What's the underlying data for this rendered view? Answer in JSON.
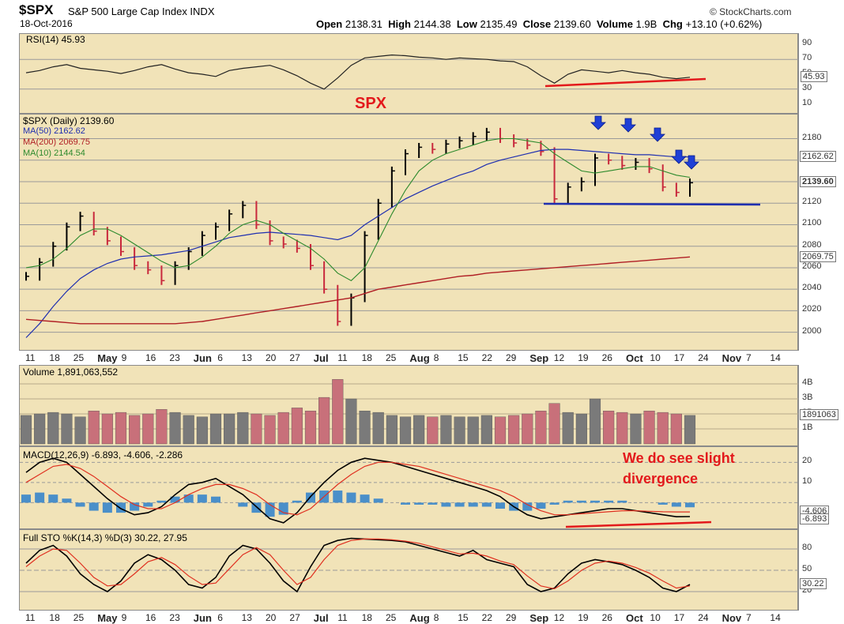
{
  "header": {
    "symbol": "$SPX",
    "name": "S&P 500 Large Cap Index INDX",
    "date": "18-Oct-2016",
    "brand": "© StockCharts.com",
    "open_label": "Open",
    "open": "2138.31",
    "high_label": "High",
    "high": "2144.38",
    "low_label": "Low",
    "low": "2135.49",
    "close_label": "Close",
    "close": "2139.60",
    "volume_label": "Volume",
    "volume": "1.9B",
    "chg_label": "Chg",
    "chg": "+13.10 (+0.62%)"
  },
  "colors": {
    "panel_bg": "#f1e3b8",
    "up": "#000000",
    "down": "#c8283c",
    "ma50": "#1f2fb0",
    "ma200": "#b01e24",
    "ma10": "#2d8a2d",
    "annotation": "#e3191c",
    "arrow": "#1f3fd6"
  },
  "annotations": {
    "spx_title": "SPX",
    "divergence_line1": "We do see slight",
    "divergence_line2": "divergence"
  },
  "x_axis": {
    "labels": [
      {
        "text": "11",
        "bold": false
      },
      {
        "text": "18",
        "bold": false
      },
      {
        "text": "25",
        "bold": false
      },
      {
        "text": "May",
        "bold": true
      },
      {
        "text": "9",
        "bold": false
      },
      {
        "text": "16",
        "bold": false
      },
      {
        "text": "23",
        "bold": false
      },
      {
        "text": "Jun",
        "bold": true
      },
      {
        "text": "6",
        "bold": false
      },
      {
        "text": "13",
        "bold": false
      },
      {
        "text": "20",
        "bold": false
      },
      {
        "text": "27",
        "bold": false
      },
      {
        "text": "Jul",
        "bold": true
      },
      {
        "text": "11",
        "bold": false
      },
      {
        "text": "18",
        "bold": false
      },
      {
        "text": "25",
        "bold": false
      },
      {
        "text": "Aug",
        "bold": true
      },
      {
        "text": "8",
        "bold": false
      },
      {
        "text": "15",
        "bold": false
      },
      {
        "text": "22",
        "bold": false
      },
      {
        "text": "29",
        "bold": false
      },
      {
        "text": "Sep",
        "bold": true
      },
      {
        "text": "12",
        "bold": false
      },
      {
        "text": "19",
        "bold": false
      },
      {
        "text": "26",
        "bold": false
      },
      {
        "text": "Oct",
        "bold": true
      },
      {
        "text": "10",
        "bold": false
      },
      {
        "text": "17",
        "bold": false
      },
      {
        "text": "24",
        "bold": false
      },
      {
        "text": "Nov",
        "bold": true
      },
      {
        "text": "7",
        "bold": false
      },
      {
        "text": "14",
        "bold": false
      }
    ]
  },
  "chart_data": [
    {
      "type": "line",
      "panel": "RSI",
      "title": "RSI(14) 45.93",
      "ylim": [
        0,
        100
      ],
      "y_ticks": [
        "90",
        "70",
        "50",
        "30",
        "10"
      ],
      "last_value_tag": "45.93",
      "series": [
        {
          "name": "RSI(14)",
          "values": [
            52,
            55,
            60,
            63,
            58,
            56,
            54,
            51,
            55,
            60,
            63,
            57,
            52,
            50,
            47,
            55,
            58,
            60,
            62,
            56,
            48,
            38,
            30,
            45,
            62,
            72,
            74,
            76,
            75,
            73,
            72,
            70,
            72,
            71,
            70,
            68,
            67,
            60,
            48,
            38,
            50,
            56,
            54,
            52,
            55,
            52,
            50,
            46,
            44,
            46
          ]
        }
      ]
    },
    {
      "type": "line",
      "panel": "Price",
      "title": "$SPX (Daily) 2139.60",
      "ylim": [
        1988,
        2198
      ],
      "y_ticks": [
        "2180",
        "2160",
        "2140",
        "2120",
        "2100",
        "2080",
        "2060",
        "2040",
        "2020",
        "2000"
      ],
      "price_tags": [
        "2162.62",
        "2139.60",
        "2069.75"
      ],
      "legend": [
        "MA(50) 2162.62",
        "MA(200) 2069.75",
        "MA(10) 2144.54"
      ],
      "series": [
        {
          "name": "$SPX",
          "values": [
            2052,
            2065,
            2080,
            2098,
            2108,
            2094,
            2085,
            2075,
            2062,
            2058,
            2048,
            2062,
            2075,
            2090,
            2098,
            2110,
            2118,
            2100,
            2085,
            2082,
            2078,
            2062,
            2040,
            2010,
            2032,
            2090,
            2120,
            2150,
            2166,
            2172,
            2170,
            2175,
            2178,
            2182,
            2186,
            2180,
            2176,
            2174,
            2168,
            2124,
            2135,
            2140,
            2162,
            2160,
            2155,
            2158,
            2152,
            2135,
            2130,
            2139
          ]
        },
        {
          "name": "MA(50)",
          "values": [
            1995,
            2008,
            2024,
            2038,
            2050,
            2058,
            2064,
            2068,
            2070,
            2071,
            2072,
            2074,
            2076,
            2080,
            2084,
            2088,
            2090,
            2092,
            2093,
            2092,
            2091,
            2090,
            2088,
            2086,
            2090,
            2100,
            2108,
            2116,
            2124,
            2130,
            2136,
            2141,
            2146,
            2150,
            2156,
            2160,
            2163,
            2166,
            2169,
            2170,
            2170,
            2169,
            2168,
            2167,
            2166,
            2165,
            2165,
            2164,
            2163,
            2163
          ]
        },
        {
          "name": "MA(200)",
          "values": [
            2012,
            2011,
            2010,
            2009,
            2008,
            2008,
            2008,
            2008,
            2008,
            2008,
            2008,
            2008,
            2009,
            2010,
            2012,
            2014,
            2016,
            2018,
            2020,
            2022,
            2024,
            2026,
            2028,
            2030,
            2032,
            2036,
            2040,
            2042,
            2044,
            2046,
            2048,
            2050,
            2052,
            2053,
            2055,
            2056,
            2057,
            2058,
            2059,
            2060,
            2061,
            2062,
            2063,
            2064,
            2065,
            2066,
            2067,
            2068,
            2069,
            2070
          ]
        },
        {
          "name": "MA(10)",
          "values": [
            2060,
            2062,
            2068,
            2078,
            2090,
            2096,
            2096,
            2090,
            2082,
            2074,
            2066,
            2060,
            2062,
            2070,
            2080,
            2092,
            2100,
            2104,
            2100,
            2092,
            2085,
            2078,
            2068,
            2055,
            2048,
            2060,
            2085,
            2110,
            2132,
            2150,
            2160,
            2166,
            2170,
            2174,
            2178,
            2180,
            2180,
            2178,
            2176,
            2166,
            2158,
            2150,
            2148,
            2150,
            2152,
            2154,
            2154,
            2150,
            2146,
            2144
          ]
        }
      ]
    },
    {
      "type": "bar",
      "panel": "Volume",
      "title": "Volume 1,891,063,552",
      "ylim": [
        0,
        5
      ],
      "y_ticks": [
        "4B",
        "3B",
        "2B",
        "1B"
      ],
      "last_value_tag": "1891063",
      "series": [
        {
          "name": "Volume (B)",
          "values": [
            1.9,
            2.0,
            2.1,
            2.0,
            1.8,
            2.2,
            2.0,
            2.1,
            1.9,
            2.0,
            2.3,
            2.1,
            1.9,
            1.8,
            2.0,
            2.0,
            2.1,
            2.0,
            1.9,
            2.1,
            2.4,
            2.2,
            3.1,
            4.3,
            3.0,
            2.2,
            2.1,
            1.9,
            1.8,
            1.9,
            1.8,
            1.9,
            1.8,
            1.8,
            1.9,
            1.8,
            1.9,
            2.0,
            2.2,
            2.7,
            2.1,
            2.0,
            3.0,
            2.2,
            2.1,
            2.0,
            2.2,
            2.1,
            2.0,
            1.9
          ]
        }
      ]
    },
    {
      "type": "line",
      "panel": "MACD",
      "title": "MACD(12,26,9) -6.893, -4.606, -2.286",
      "ylim": [
        -12,
        26
      ],
      "y_ticks": [
        "20",
        "10"
      ],
      "tags": [
        "-4.606",
        "-6.893"
      ],
      "series": [
        {
          "name": "MACD(12,26,9)",
          "values": [
            15,
            20,
            22,
            20,
            14,
            8,
            2,
            -3,
            -6,
            -5,
            -2,
            4,
            9,
            10,
            12,
            8,
            4,
            -2,
            -8,
            -10,
            -5,
            3,
            10,
            16,
            20,
            22,
            21,
            20,
            18,
            16,
            14,
            12,
            10,
            8,
            6,
            3,
            -2,
            -6,
            -8,
            -7,
            -6,
            -5,
            -4,
            -3,
            -3,
            -4,
            -5,
            -6,
            -7,
            -6.9
          ]
        },
        {
          "name": "Signal",
          "values": [
            10,
            14,
            18,
            19,
            17,
            13,
            8,
            3,
            -1,
            -3,
            -3,
            0,
            4,
            7,
            9,
            9,
            7,
            4,
            -1,
            -5,
            -6,
            -3,
            3,
            9,
            14,
            18,
            20,
            20,
            19,
            18,
            16,
            14,
            12,
            10,
            8,
            6,
            3,
            -1,
            -4,
            -6,
            -6,
            -5.5,
            -5,
            -4.5,
            -4,
            -4,
            -4.3,
            -4.5,
            -4.6,
            -4.6
          ]
        },
        {
          "name": "Histogram",
          "values": [
            4,
            5,
            4,
            2,
            -2,
            -4,
            -5,
            -5,
            -4,
            -2,
            1,
            3,
            4,
            4,
            3,
            0,
            -2,
            -5,
            -7,
            -6,
            1,
            5,
            6,
            6,
            5,
            4,
            2,
            0,
            -1,
            -1,
            -1,
            -2,
            -2,
            -2,
            -2,
            -3,
            -4,
            -4,
            -3,
            -1,
            1,
            1,
            1,
            1,
            1,
            0,
            0,
            -1,
            -2,
            -2.3
          ]
        }
      ]
    },
    {
      "type": "line",
      "panel": "Full STO",
      "title": "Full STO %K(14,3) %D(3) 30.22, 27.95",
      "ylim": [
        0,
        100
      ],
      "y_ticks": [
        "80",
        "50",
        "20"
      ],
      "last_value_tag": "30.22",
      "series": [
        {
          "name": "%K(14,3)",
          "values": [
            60,
            78,
            85,
            70,
            45,
            30,
            20,
            35,
            60,
            72,
            65,
            50,
            30,
            25,
            40,
            70,
            85,
            80,
            60,
            35,
            20,
            55,
            85,
            92,
            95,
            94,
            93,
            92,
            90,
            85,
            80,
            75,
            70,
            78,
            65,
            60,
            55,
            30,
            20,
            25,
            45,
            60,
            65,
            62,
            58,
            50,
            40,
            25,
            20,
            30
          ]
        },
        {
          "name": "%D(3)",
          "values": [
            55,
            70,
            80,
            78,
            60,
            40,
            28,
            30,
            45,
            62,
            68,
            58,
            42,
            30,
            32,
            52,
            72,
            82,
            72,
            50,
            30,
            40,
            65,
            85,
            92,
            94,
            94,
            93,
            91,
            88,
            83,
            78,
            73,
            74,
            70,
            63,
            58,
            42,
            28,
            24,
            35,
            50,
            60,
            63,
            60,
            54,
            46,
            35,
            25,
            28
          ]
        }
      ]
    }
  ]
}
